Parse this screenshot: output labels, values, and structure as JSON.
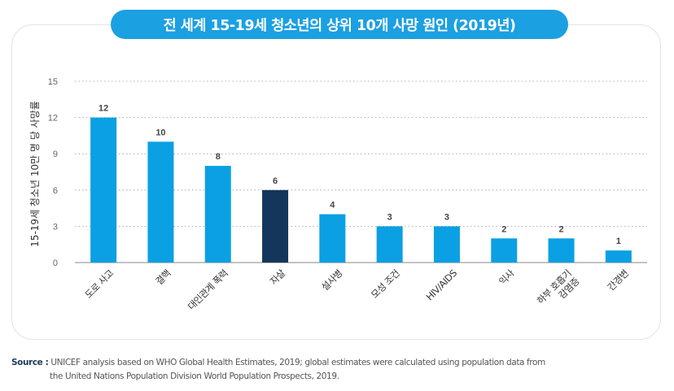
{
  "title": "전 세계 15-19세 청소년의 상위 10개 사망 원인 (2019년)",
  "source": {
    "label": "Source :",
    "line1": "UNICEF analysis based on WHO Global Health Estimates, 2019; global estimates were calculated using population data from",
    "line2": "the United Nations Population Division World Population Prospects, 2019."
  },
  "colors": {
    "accent": "#1ba0e2",
    "highlight": "#14365a",
    "bar": "#0aa0e3"
  },
  "chart_data": {
    "type": "bar",
    "ylabel": "15-19세 청소년 10만 명 당 사망률",
    "ylim": [
      0,
      15
    ],
    "yticks": [
      0,
      3,
      6,
      9,
      12,
      15
    ],
    "grid": true,
    "categories": [
      [
        "도로 사고"
      ],
      [
        "결핵"
      ],
      [
        "대인관계 폭력"
      ],
      [
        "자살"
      ],
      [
        "설사병"
      ],
      [
        "모성 조건"
      ],
      [
        "HIV/AIDS"
      ],
      [
        "익사"
      ],
      [
        "하부 호흡기",
        "감염증"
      ],
      [
        "간경변"
      ]
    ],
    "values": [
      12,
      10,
      8,
      6,
      4,
      3,
      3,
      2,
      2,
      1
    ],
    "highlight_index": 3
  }
}
